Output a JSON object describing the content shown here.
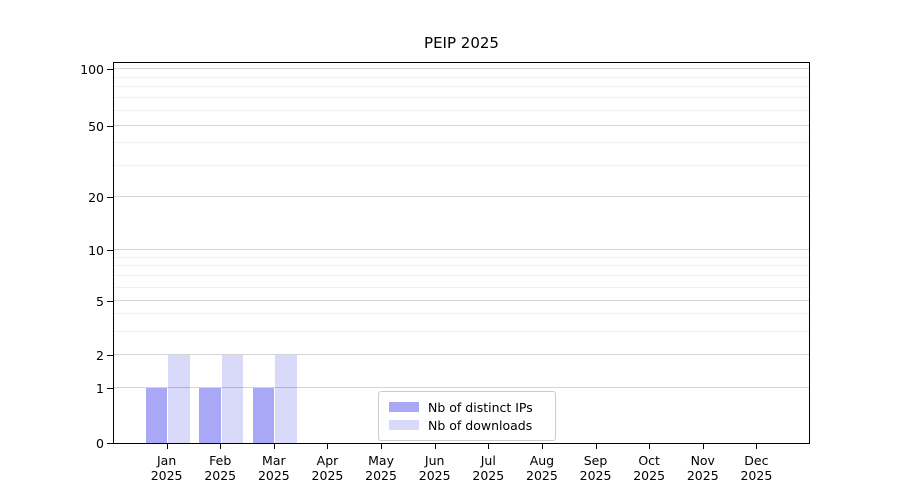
{
  "figure": {
    "title": "PEIP 2025"
  },
  "chart_data": {
    "type": "bar",
    "title": "PEIP 2025",
    "categories": [
      "Jan 2025",
      "Feb 2025",
      "Mar 2025",
      "Apr 2025",
      "May 2025",
      "Jun 2025",
      "Jul 2025",
      "Aug 2025",
      "Sep 2025",
      "Oct 2025",
      "Nov 2025",
      "Dec 2025"
    ],
    "series": [
      {
        "name": "Nb of distinct IPs",
        "color": "#a8a8f6",
        "values": [
          1,
          1,
          1,
          0,
          0,
          0,
          0,
          0,
          0,
          0,
          0,
          0
        ]
      },
      {
        "name": "Nb of downloads",
        "color": "#d9d9fa",
        "values": [
          2,
          2,
          2,
          0,
          0,
          0,
          0,
          0,
          0,
          0,
          0,
          0
        ]
      }
    ],
    "xlabel": "",
    "ylabel": "",
    "yscale": "symlog",
    "ylim": [
      0,
      107
    ],
    "y_major_ticks": [
      0,
      1,
      2,
      5,
      10,
      20,
      50,
      100
    ],
    "y_minor_ticks": [
      3,
      4,
      6,
      7,
      8,
      9,
      30,
      40,
      60,
      70,
      80,
      90
    ],
    "grid": "horizontal-major-and-minor",
    "legend_position": "lower center",
    "colors": {
      "bar_distinct_ips": "#a8a8f6",
      "bar_downloads": "#d9d9fa",
      "axis": "#000000",
      "grid_major": "#c8c8c8",
      "grid_minor": "#efefef",
      "legend_border": "#cccccc"
    }
  }
}
